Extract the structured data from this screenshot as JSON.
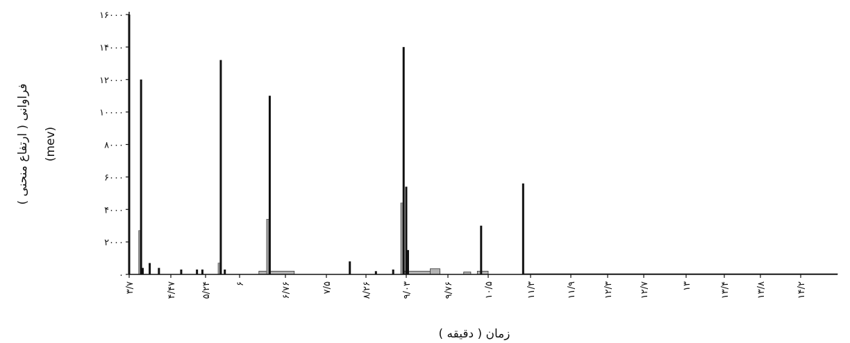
{
  "chart_data": {
    "type": "bar",
    "xlabel": "زمان ( دقیقه )",
    "ylabel_line1": "فراوانی ( ارتفاع منحنی )",
    "ylabel_line2": "(mev)",
    "ylim": [
      0,
      16000
    ],
    "yticks": [
      0,
      2000,
      4000,
      6000,
      8000,
      10000,
      12000,
      14000,
      16000
    ],
    "ytick_labels": [
      "۰",
      "۲۰۰۰",
      "۴۰۰۰",
      "۶۰۰۰",
      "۸۰۰۰",
      "۱۰۰۰۰",
      "۱۲۰۰۰",
      "۱۴۰۰۰",
      "۱۶۰۰۰"
    ],
    "xlim": [
      3.7,
      14.9
    ],
    "xticks": [
      3.7,
      4.47,
      5.24,
      6,
      6.76,
      7.5,
      8.26,
      9.03,
      9.76,
      10.5,
      11.3,
      11.9,
      12.3,
      12.7,
      13,
      13.4,
      13.8,
      14.2
    ],
    "xtick_labels": [
      "۳/۷",
      "۴/۴۷",
      "۵/۲۴",
      "۶",
      "۶/۷۶",
      "۷/۵",
      "۸/۲۶",
      "۹/۰۳",
      "۹/۷۶",
      "۱۰/۵",
      "۱۱/۳",
      "۱۱/۹",
      "۱۲/۳",
      "۱۲/۷",
      "۱۳",
      "۱۳/۴",
      "۱۳/۸",
      "۱۴/۲"
    ],
    "grid": false,
    "peaks": [
      {
        "x": 3.7,
        "y": 16000
      },
      {
        "x": 3.92,
        "y": 12000
      },
      {
        "x": 3.95,
        "y": 400
      },
      {
        "x": 4.08,
        "y": 700
      },
      {
        "x": 4.25,
        "y": 400
      },
      {
        "x": 4.7,
        "y": 300
      },
      {
        "x": 5.05,
        "y": 300
      },
      {
        "x": 5.17,
        "y": 300
      },
      {
        "x": 5.58,
        "y": 13200
      },
      {
        "x": 5.67,
        "y": 300
      },
      {
        "x": 6.5,
        "y": 11000
      },
      {
        "x": 7.95,
        "y": 800
      },
      {
        "x": 8.45,
        "y": 200
      },
      {
        "x": 8.78,
        "y": 300
      },
      {
        "x": 8.98,
        "y": 14000
      },
      {
        "x": 9.03,
        "y": 5400
      },
      {
        "x": 9.06,
        "y": 1500
      },
      {
        "x": 10.37,
        "y": 3000
      },
      {
        "x": 11.16,
        "y": 5600
      }
    ],
    "secondary_peaks": [
      {
        "x": 3.9,
        "y": 2700
      },
      {
        "x": 5.55,
        "y": 700
      },
      {
        "x": 6.47,
        "y": 3400
      },
      {
        "x": 8.95,
        "y": 4400
      }
    ],
    "baseline_segments": [
      {
        "x1": 6.32,
        "x2": 6.92,
        "y": 200
      },
      {
        "x1": 8.98,
        "x2": 9.62,
        "y": 200
      },
      {
        "x1": 9.45,
        "x2": 9.62,
        "y": 350
      },
      {
        "x1": 10.05,
        "x2": 10.18,
        "y": 150
      },
      {
        "x1": 10.3,
        "x2": 10.5,
        "y": 200
      },
      {
        "x1": 11.16,
        "x2": 14.9,
        "y": 40
      }
    ]
  }
}
